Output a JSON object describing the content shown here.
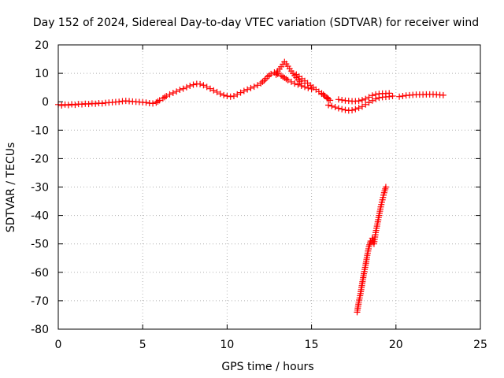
{
  "chart_data": {
    "type": "scatter",
    "title": "Day 152 of 2024, Sidereal Day-to-day VTEC variation (SDTVAR) for receiver wind",
    "xlabel": "GPS time / hours",
    "ylabel": "SDTVAR / TECUs",
    "xlim": [
      0,
      25
    ],
    "ylim": [
      -80,
      20
    ],
    "xticks": [
      "0",
      "5",
      "10",
      "15",
      "20",
      "25"
    ],
    "yticks": [
      "20",
      "10",
      "0",
      "-10",
      "-20",
      "-30",
      "-40",
      "-50",
      "-60",
      "-70",
      "-80"
    ],
    "grid": true,
    "marker": "plus",
    "color": "#ff0000",
    "series": [
      {
        "name": "main-trace",
        "points": [
          [
            0.0,
            -1.0
          ],
          [
            0.2,
            -1.3
          ],
          [
            0.4,
            -1.0
          ],
          [
            0.6,
            -1.2
          ],
          [
            0.8,
            -0.9
          ],
          [
            1.0,
            -1.1
          ],
          [
            1.2,
            -0.8
          ],
          [
            1.4,
            -0.9
          ],
          [
            1.6,
            -0.7
          ],
          [
            1.8,
            -0.8
          ],
          [
            2.0,
            -0.6
          ],
          [
            2.2,
            -0.7
          ],
          [
            2.4,
            -0.5
          ],
          [
            2.6,
            -0.6
          ],
          [
            2.8,
            -0.4
          ],
          [
            3.0,
            -0.3
          ],
          [
            3.2,
            -0.2
          ],
          [
            3.4,
            -0.1
          ],
          [
            3.6,
            0.0
          ],
          [
            3.8,
            0.2
          ],
          [
            4.0,
            0.3
          ],
          [
            4.2,
            0.2
          ],
          [
            4.4,
            0.1
          ],
          [
            4.6,
            0.0
          ],
          [
            4.8,
            -0.1
          ],
          [
            5.0,
            -0.2
          ],
          [
            5.2,
            -0.3
          ],
          [
            5.4,
            -0.5
          ],
          [
            5.6,
            -0.6
          ],
          [
            5.8,
            -0.3
          ],
          [
            6.0,
            0.5
          ],
          [
            6.2,
            1.2
          ],
          [
            6.4,
            2.0
          ],
          [
            6.6,
            2.6
          ],
          [
            6.8,
            3.1
          ],
          [
            7.0,
            3.6
          ],
          [
            7.2,
            4.2
          ],
          [
            7.4,
            4.6
          ],
          [
            7.6,
            5.1
          ],
          [
            7.8,
            5.6
          ],
          [
            8.0,
            6.0
          ],
          [
            8.2,
            6.3
          ],
          [
            8.4,
            6.2
          ],
          [
            8.6,
            5.8
          ],
          [
            8.8,
            5.2
          ],
          [
            9.0,
            4.6
          ],
          [
            9.2,
            4.0
          ],
          [
            9.4,
            3.4
          ],
          [
            9.6,
            2.8
          ],
          [
            9.8,
            2.3
          ],
          [
            10.0,
            2.0
          ],
          [
            10.2,
            1.8
          ],
          [
            10.4,
            2.0
          ],
          [
            10.6,
            2.6
          ],
          [
            10.8,
            3.2
          ],
          [
            11.0,
            3.8
          ],
          [
            11.2,
            4.3
          ],
          [
            11.4,
            4.8
          ],
          [
            11.6,
            5.3
          ],
          [
            11.8,
            5.8
          ],
          [
            12.0,
            6.5
          ],
          [
            12.2,
            7.5
          ],
          [
            12.4,
            8.8
          ],
          [
            12.6,
            9.8
          ],
          [
            12.8,
            10.3
          ],
          [
            13.0,
            9.8
          ],
          [
            13.2,
            9.2
          ],
          [
            13.4,
            8.4
          ],
          [
            13.6,
            7.6
          ],
          [
            13.8,
            7.0
          ],
          [
            14.0,
            6.4
          ],
          [
            14.2,
            6.0
          ],
          [
            14.4,
            5.6
          ],
          [
            14.6,
            5.2
          ],
          [
            14.8,
            4.8
          ],
          [
            15.0,
            4.5
          ]
        ]
      },
      {
        "name": "spike-branch",
        "points": [
          [
            12.9,
            9.5
          ],
          [
            13.0,
            10.8
          ],
          [
            13.1,
            11.5
          ],
          [
            13.2,
            12.3
          ],
          [
            13.3,
            13.2
          ],
          [
            13.4,
            14.0
          ],
          [
            13.5,
            13.3
          ],
          [
            13.6,
            12.5
          ],
          [
            13.7,
            11.6
          ],
          [
            13.8,
            10.8
          ],
          [
            13.9,
            10.0
          ],
          [
            14.0,
            9.2
          ],
          [
            14.1,
            8.5
          ],
          [
            14.2,
            7.8
          ],
          [
            14.3,
            7.2
          ],
          [
            14.4,
            6.5
          ]
        ]
      },
      {
        "name": "gap-scatter",
        "points": [
          [
            15.6,
            3.0
          ],
          [
            15.9,
            1.5
          ],
          [
            16.1,
            0.5
          ],
          [
            14.1,
            9.6
          ]
        ]
      },
      {
        "name": "dip-segment",
        "points": [
          [
            16.0,
            -1.2
          ],
          [
            16.2,
            -1.5
          ],
          [
            16.4,
            -1.9
          ],
          [
            16.6,
            -2.3
          ],
          [
            16.8,
            -2.6
          ],
          [
            17.0,
            -2.9
          ],
          [
            17.2,
            -3.1
          ],
          [
            17.4,
            -3.0
          ],
          [
            17.6,
            -2.6
          ],
          [
            17.8,
            -2.2
          ],
          [
            18.0,
            -1.7
          ],
          [
            18.2,
            -1.0
          ],
          [
            18.4,
            -0.3
          ],
          [
            18.6,
            0.4
          ],
          [
            18.8,
            1.0
          ],
          [
            19.0,
            1.4
          ],
          [
            19.2,
            1.6
          ],
          [
            19.4,
            1.7
          ],
          [
            19.6,
            1.8
          ],
          [
            19.8,
            2.0
          ]
        ]
      },
      {
        "name": "upper-segment",
        "points": [
          [
            16.6,
            0.8
          ],
          [
            16.8,
            0.6
          ],
          [
            17.0,
            0.4
          ],
          [
            17.2,
            0.3
          ],
          [
            17.4,
            0.2
          ],
          [
            17.6,
            0.2
          ],
          [
            17.8,
            0.3
          ],
          [
            18.0,
            0.6
          ],
          [
            18.2,
            1.0
          ],
          [
            18.4,
            1.6
          ],
          [
            18.6,
            2.2
          ],
          [
            18.8,
            2.6
          ],
          [
            19.0,
            2.8
          ],
          [
            19.2,
            2.9
          ],
          [
            19.4,
            2.9
          ],
          [
            19.6,
            3.0
          ]
        ]
      },
      {
        "name": "late-plateau",
        "points": [
          [
            20.2,
            1.8
          ],
          [
            20.4,
            2.0
          ],
          [
            20.6,
            2.2
          ],
          [
            20.8,
            2.3
          ],
          [
            21.0,
            2.4
          ],
          [
            21.2,
            2.5
          ],
          [
            21.4,
            2.5
          ],
          [
            21.6,
            2.5
          ],
          [
            21.8,
            2.6
          ],
          [
            22.0,
            2.6
          ],
          [
            22.2,
            2.6
          ],
          [
            22.4,
            2.5
          ],
          [
            22.6,
            2.4
          ],
          [
            22.8,
            2.3
          ]
        ]
      },
      {
        "name": "descending-branch",
        "points": [
          [
            17.7,
            -74.0
          ],
          [
            17.8,
            -70.5
          ],
          [
            17.9,
            -67.5
          ],
          [
            18.0,
            -64.0
          ],
          [
            18.1,
            -60.5
          ],
          [
            18.2,
            -57.5
          ],
          [
            18.3,
            -54.0
          ],
          [
            18.4,
            -51.0
          ],
          [
            18.5,
            -49.0
          ],
          [
            18.6,
            -48.0
          ],
          [
            18.7,
            -50.0
          ],
          [
            18.8,
            -46.0
          ],
          [
            18.9,
            -43.0
          ],
          [
            19.0,
            -40.0
          ],
          [
            19.1,
            -37.0
          ],
          [
            19.2,
            -34.5
          ],
          [
            19.3,
            -32.0
          ],
          [
            19.4,
            -30.0
          ]
        ]
      }
    ]
  }
}
